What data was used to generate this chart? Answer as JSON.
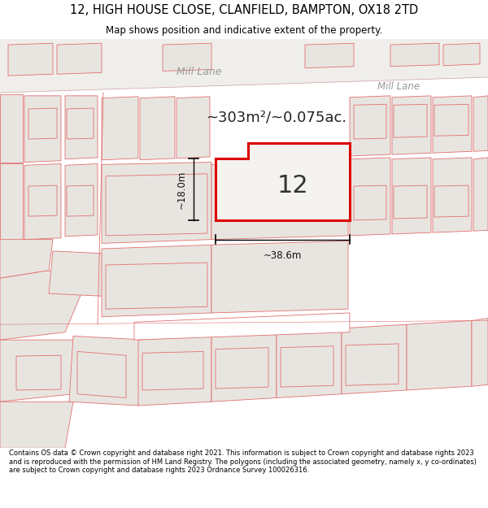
{
  "title_line1": "12, HIGH HOUSE CLOSE, CLANFIELD, BAMPTON, OX18 2TD",
  "title_line2": "Map shows position and indicative extent of the property.",
  "footer_text": "Contains OS data © Crown copyright and database right 2021. This information is subject to Crown copyright and database rights 2023 and is reproduced with the permission of HM Land Registry. The polygons (including the associated geometry, namely x, y co-ordinates) are subject to Crown copyright and database rights 2023 Ordnance Survey 100026316.",
  "area_label": "~303m²/~0.075ac.",
  "property_number": "12",
  "dim_width": "~38.6m",
  "dim_height": "~18.0m",
  "map_bg": "#f5f3f0",
  "plot_fill": "#e8e5e0",
  "road_label1": "Mill Lane",
  "road_label2": "Mill Lane",
  "outline_color": "#e07070",
  "highlight_color": "#dd0000",
  "road_fill": "#ffffff",
  "label_color": "#aaaaaa"
}
